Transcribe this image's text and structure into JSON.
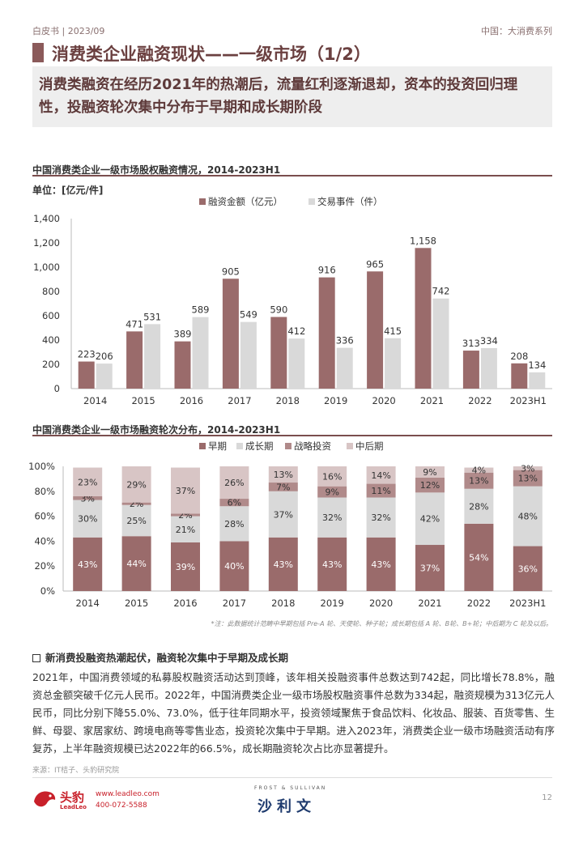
{
  "header": {
    "left": "白皮书 | 2023/09",
    "right": "中国：大消费系列"
  },
  "title": "消费类企业融资现状——一级市场（1/2）",
  "summary": "消费类融资在经历2021年的热潮后，流量红利逐渐退却，资本的投资回归理性，投融资轮次集中分布于早期和成长期阶段",
  "chart1_title": "中国消费类企业一级市场股权融资情况，2014-2023H1",
  "unit_label": "单位：[亿元/件]",
  "chart2_title": "中国消费类企业一级市场融资轮次分布，2014-2023H1",
  "note": "*注：此数据统计范畴中早期包括 Pre-A 轮、天使轮、种子轮；成长期包括 A 轮、B轮、B+轮；中后期为 C 轮及以后。",
  "bullet_title": "新消费投融资热潮起伏，融资轮次集中于早期及成长期",
  "body": "2021年，中国消费领域的私募股权融资活动达到顶峰，该年相关投融资事件总数达到742起，同比增长78.8%，融资总金额突破千亿元人民币。2022年，中国消费类企业一级市场股权融资事件总数为334起，融资规模为313亿元人民币，同比分别下降55.0%、73.0%，低于往年同期水平，投资领域聚焦于食品饮料、化妆品、服装、百货零售、生鲜、母婴、家居家纺、跨境电商等零售业态，投资轮次集中于早期。进入2023年，消费类企业一级市场融资活动有序复苏，上半年融资规模已达2022年的66.5%，成长期融资轮次占比亦显著提升。",
  "source": "来源：IT桔子、头豹研究院",
  "footer": {
    "logo_cn": "头豹",
    "logo_en": "LeadLeo",
    "web": "www.leadleo.com",
    "phone": "400-072-5588",
    "partner_en": "FROST & SULLIVAN",
    "partner_cn": "沙利文",
    "page": "12"
  },
  "colors": {
    "accent": "#9a6b6b",
    "light": "#d9d9d9",
    "strategic": "#b08a8a",
    "late": "#d8c5c5"
  },
  "chart_data": [
    {
      "type": "bar",
      "title": "中国消费类企业一级市场股权融资情况，2014-2023H1",
      "ylabel": "单位：[亿元/件]",
      "ylim": [
        0,
        1400
      ],
      "yticks": [
        0,
        200,
        400,
        600,
        800,
        1000,
        1200,
        1400
      ],
      "legend_position": "top",
      "categories": [
        "2014",
        "2015",
        "2016",
        "2017",
        "2018",
        "2019",
        "2020",
        "2021",
        "2022",
        "2023H1"
      ],
      "series": [
        {
          "name": "融资金额（亿元）",
          "values": [
            223,
            471,
            389,
            905,
            590,
            916,
            965,
            1158,
            313,
            208
          ],
          "labels": [
            "223",
            "471",
            "389",
            "905",
            "590",
            "916",
            "965",
            "1,158",
            "313",
            "208"
          ]
        },
        {
          "name": "交易事件（件）",
          "values": [
            206,
            531,
            589,
            549,
            412,
            336,
            415,
            742,
            334,
            134
          ],
          "labels": [
            "206",
            "531",
            "589",
            "549",
            "412",
            "336",
            "415",
            "742",
            "334",
            "134"
          ]
        }
      ]
    },
    {
      "type": "bar",
      "stacked": true,
      "title": "中国消费类企业一级市场融资轮次分布，2014-2023H1",
      "ylim": [
        0,
        100
      ],
      "yticks": [
        "0%",
        "20%",
        "40%",
        "60%",
        "80%",
        "100%"
      ],
      "legend_position": "top",
      "categories": [
        "2014",
        "2015",
        "2016",
        "2017",
        "2018",
        "2019",
        "2020",
        "2021",
        "2022",
        "2023H1"
      ],
      "series": [
        {
          "name": "早期",
          "values": [
            43,
            44,
            39,
            40,
            43,
            43,
            43,
            37,
            54,
            36
          ]
        },
        {
          "name": "成长期",
          "values": [
            30,
            25,
            21,
            28,
            37,
            32,
            32,
            42,
            28,
            48
          ]
        },
        {
          "name": "战略投资",
          "values": [
            3,
            2,
            2,
            6,
            7,
            9,
            11,
            12,
            13,
            13
          ]
        },
        {
          "name": "中后期",
          "values": [
            23,
            29,
            37,
            26,
            13,
            16,
            14,
            9,
            4,
            3
          ]
        }
      ]
    }
  ]
}
